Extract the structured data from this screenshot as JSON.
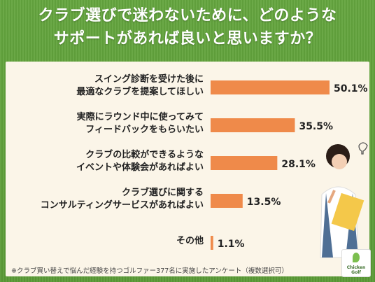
{
  "title_lines": [
    "クラブ選びで迷わないために、どのような",
    "サポートがあれば良いと思いますか？"
  ],
  "chart_data": {
    "type": "bar",
    "orientation": "horizontal",
    "categories": [
      [
        "スイング診断を受けた後に",
        "最適なクラブを提案してほしい"
      ],
      [
        "実際にラウンド中に使ってみて",
        "フィードバックをもらいたい"
      ],
      [
        "クラブの比較ができるような",
        "イベントや体験会があればよい"
      ],
      [
        "クラブ選びに関する",
        "コンサルティングサービスがあればよい"
      ],
      [
        "その他"
      ]
    ],
    "values": [
      50.1,
      35.5,
      28.1,
      13.5,
      1.1
    ],
    "value_suffix": "%",
    "xlim": [
      0,
      50.1
    ],
    "bar_color": "#ef8a4a",
    "grid": false,
    "legend": "none"
  },
  "footnote": "※クラブ買い替えで悩んだ経験を持つゴルファー377名に実施したアンケート（複数選択可）",
  "logo": {
    "name": "chicken-golf-logo",
    "text_lines": [
      "Chicken",
      "Golf"
    ]
  },
  "colors": {
    "background": "#5f9f3a",
    "panel": "#fbf5e8",
    "bar": "#ef8a4a",
    "text": "#222222"
  }
}
